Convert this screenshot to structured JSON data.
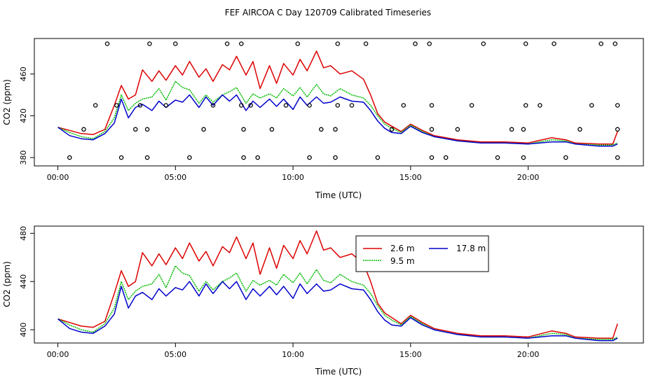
{
  "page": {
    "title": "FEF AIRCOA C  Day 120709  Calibrated Timeseries"
  },
  "colors": {
    "s26": "#dd0000",
    "s95": "#00bb00",
    "s178": "#0000cc",
    "axis": "#000000"
  },
  "chart_data": [
    {
      "type": "line",
      "title": "FEF AIRCOA C  Day 120709  Calibrated Timeseries",
      "xlabel": "Time (UTC)",
      "ylabel": "CO2 (ppm)",
      "xlim": [
        -1.0,
        24.9
      ],
      "ylim": [
        372,
        494
      ],
      "xticks": [
        0,
        5,
        10,
        15,
        20
      ],
      "xtick_labels": [
        "00:00",
        "05:00",
        "10:00",
        "15:00",
        "20:00"
      ],
      "yticks": [
        380,
        420,
        460
      ],
      "ytick_labels": [
        "380",
        "420",
        "460"
      ],
      "series": [
        {
          "name": "2.6 m",
          "color": "#dd0000",
          "x": [
            0.0,
            0.5,
            1.0,
            1.5,
            2.0,
            2.4,
            2.7,
            3.0,
            3.3,
            3.6,
            4.0,
            4.3,
            4.6,
            5.0,
            5.3,
            5.6,
            6.0,
            6.3,
            6.6,
            7.0,
            7.3,
            7.6,
            8.0,
            8.3,
            8.6,
            9.0,
            9.3,
            9.6,
            10.0,
            10.3,
            10.6,
            11.0,
            11.3,
            11.6,
            12.0,
            12.5,
            13.0,
            13.3,
            13.6,
            13.9,
            14.2,
            14.6,
            15.0,
            15.5,
            16.0,
            17.0,
            18.0,
            19.0,
            20.0,
            21.0,
            21.6,
            22.0,
            23.0,
            23.6,
            23.8
          ],
          "y": [
            409,
            406,
            403,
            402,
            407,
            430,
            449,
            436,
            440,
            464,
            453,
            463,
            454,
            468,
            459,
            472,
            457,
            465,
            453,
            469,
            464,
            477,
            459,
            472,
            446,
            468,
            451,
            470,
            459,
            474,
            463,
            482,
            466,
            468,
            460,
            463,
            455,
            440,
            422,
            414,
            410,
            405,
            412,
            406,
            401,
            397,
            395,
            395,
            394,
            399,
            397,
            394,
            393,
            393,
            405
          ]
        },
        {
          "name": "9.5 m",
          "color": "#00bb00",
          "x": [
            0.0,
            0.5,
            1.0,
            1.5,
            2.0,
            2.4,
            2.7,
            3.0,
            3.3,
            3.6,
            4.0,
            4.3,
            4.6,
            5.0,
            5.3,
            5.6,
            6.0,
            6.3,
            6.6,
            7.0,
            7.3,
            7.6,
            8.0,
            8.3,
            8.6,
            9.0,
            9.3,
            9.6,
            10.0,
            10.3,
            10.6,
            11.0,
            11.3,
            11.6,
            12.0,
            12.5,
            13.0,
            13.3,
            13.6,
            13.9,
            14.2,
            14.6,
            15.0,
            15.5,
            16.0,
            17.0,
            18.0,
            19.0,
            20.0,
            21.0,
            21.6,
            22.0,
            23.0,
            23.6,
            23.8
          ],
          "y": [
            409,
            404,
            400,
            398,
            405,
            418,
            440,
            425,
            432,
            436,
            438,
            446,
            435,
            453,
            447,
            445,
            432,
            440,
            433,
            440,
            443,
            447,
            432,
            441,
            437,
            441,
            437,
            446,
            439,
            447,
            438,
            450,
            441,
            439,
            446,
            440,
            437,
            430,
            420,
            412,
            408,
            404,
            411,
            405,
            400,
            396,
            394,
            394,
            393,
            397,
            396,
            393,
            392,
            392,
            394
          ]
        },
        {
          "name": "17.8 m",
          "color": "#0000cc",
          "x": [
            0.0,
            0.5,
            1.0,
            1.5,
            2.0,
            2.4,
            2.7,
            3.0,
            3.3,
            3.6,
            4.0,
            4.3,
            4.6,
            5.0,
            5.3,
            5.6,
            6.0,
            6.3,
            6.6,
            7.0,
            7.3,
            7.6,
            8.0,
            8.3,
            8.6,
            9.0,
            9.3,
            9.6,
            10.0,
            10.3,
            10.6,
            11.0,
            11.3,
            11.6,
            12.0,
            12.5,
            13.0,
            13.3,
            13.6,
            13.9,
            14.2,
            14.6,
            15.0,
            15.5,
            16.0,
            17.0,
            18.0,
            19.0,
            20.0,
            21.0,
            21.6,
            22.0,
            23.0,
            23.6,
            23.8
          ],
          "y": [
            409,
            401,
            398,
            397,
            403,
            413,
            436,
            418,
            428,
            431,
            425,
            434,
            428,
            435,
            433,
            440,
            428,
            438,
            430,
            440,
            434,
            440,
            425,
            434,
            428,
            436,
            429,
            436,
            426,
            438,
            430,
            438,
            432,
            433,
            438,
            434,
            433,
            425,
            415,
            408,
            404,
            403,
            410,
            404,
            400,
            396,
            394,
            394,
            393,
            395,
            395,
            393,
            391,
            391,
            393
          ]
        }
      ],
      "markers": {
        "shape": "open-circle",
        "x": [
          0.5,
          2.7,
          3.8,
          5.6,
          7.9,
          8.5,
          10.7,
          11.8,
          13.6,
          15.9,
          16.5,
          18.7,
          19.8,
          21.6,
          23.8,
          1.1,
          3.3,
          3.8,
          6.2,
          7.9,
          9.1,
          11.2,
          11.8,
          14.2,
          15.9,
          17.0,
          19.3,
          19.8,
          22.2,
          23.8,
          1.6,
          2.5,
          3.5,
          4.6,
          6.6,
          7.8,
          8.2,
          9.7,
          10.7,
          11.9,
          12.5,
          14.7,
          15.9,
          17.6,
          19.9,
          20.5,
          22.7,
          23.8,
          2.1,
          3.9,
          5.0,
          7.2,
          7.8,
          10.2,
          11.9,
          13.1,
          15.2,
          15.8,
          18.1,
          19.9,
          21.1,
          23.1,
          23.7
        ],
        "y": [
          380,
          380,
          380,
          380,
          380,
          380,
          380,
          380,
          380,
          380,
          380,
          380,
          380,
          380,
          380,
          407,
          407,
          407,
          407,
          407,
          407,
          407,
          407,
          407,
          407,
          407,
          407,
          407,
          407,
          407,
          430,
          430,
          430,
          430,
          430,
          430,
          430,
          430,
          430,
          430,
          430,
          430,
          430,
          430,
          430,
          430,
          430,
          430,
          489,
          489,
          489,
          489,
          489,
          489,
          489,
          489,
          489,
          489,
          489,
          489,
          489,
          489,
          489
        ]
      }
    },
    {
      "type": "line",
      "xlabel": "Time (UTC)",
      "ylabel": "CO2 (ppm)",
      "xlim": [
        -1.0,
        24.9
      ],
      "ylim": [
        389,
        486
      ],
      "xticks": [
        0,
        5,
        10,
        15,
        20
      ],
      "xtick_labels": [
        "00:00",
        "05:00",
        "10:00",
        "15:00",
        "20:00"
      ],
      "yticks": [
        400,
        440,
        480
      ],
      "ytick_labels": [
        "400",
        "440",
        "480"
      ],
      "legend": {
        "position": "top-right",
        "entries": [
          "2.6 m",
          "17.8 m",
          "9.5 m"
        ]
      },
      "series": [
        {
          "name": "2.6 m",
          "color": "#dd0000",
          "x": [
            0.0,
            0.5,
            1.0,
            1.5,
            2.0,
            2.4,
            2.7,
            3.0,
            3.3,
            3.6,
            4.0,
            4.3,
            4.6,
            5.0,
            5.3,
            5.6,
            6.0,
            6.3,
            6.6,
            7.0,
            7.3,
            7.6,
            8.0,
            8.3,
            8.6,
            9.0,
            9.3,
            9.6,
            10.0,
            10.3,
            10.6,
            11.0,
            11.3,
            11.6,
            12.0,
            12.5,
            13.0,
            13.3,
            13.6,
            13.9,
            14.2,
            14.6,
            15.0,
            15.5,
            16.0,
            17.0,
            18.0,
            19.0,
            20.0,
            21.0,
            21.6,
            22.0,
            23.0,
            23.6,
            23.8
          ],
          "y": [
            409,
            406,
            403,
            402,
            407,
            430,
            449,
            436,
            440,
            464,
            453,
            463,
            454,
            468,
            459,
            472,
            457,
            465,
            453,
            469,
            464,
            477,
            459,
            472,
            446,
            468,
            451,
            470,
            459,
            474,
            463,
            482,
            466,
            468,
            460,
            463,
            455,
            440,
            422,
            414,
            410,
            405,
            412,
            406,
            401,
            397,
            395,
            395,
            394,
            399,
            397,
            394,
            393,
            393,
            405
          ]
        },
        {
          "name": "9.5 m",
          "color": "#00bb00",
          "x": [
            0.0,
            0.5,
            1.0,
            1.5,
            2.0,
            2.4,
            2.7,
            3.0,
            3.3,
            3.6,
            4.0,
            4.3,
            4.6,
            5.0,
            5.3,
            5.6,
            6.0,
            6.3,
            6.6,
            7.0,
            7.3,
            7.6,
            8.0,
            8.3,
            8.6,
            9.0,
            9.3,
            9.6,
            10.0,
            10.3,
            10.6,
            11.0,
            11.3,
            11.6,
            12.0,
            12.5,
            13.0,
            13.3,
            13.6,
            13.9,
            14.2,
            14.6,
            15.0,
            15.5,
            16.0,
            17.0,
            18.0,
            19.0,
            20.0,
            21.0,
            21.6,
            22.0,
            23.0,
            23.6,
            23.8
          ],
          "y": [
            409,
            404,
            400,
            398,
            405,
            418,
            440,
            425,
            432,
            436,
            438,
            446,
            435,
            453,
            447,
            445,
            432,
            440,
            433,
            440,
            443,
            447,
            432,
            441,
            437,
            441,
            437,
            446,
            439,
            447,
            438,
            450,
            441,
            439,
            446,
            440,
            437,
            430,
            420,
            412,
            408,
            404,
            411,
            405,
            400,
            396,
            394,
            394,
            393,
            397,
            396,
            393,
            392,
            392,
            394
          ]
        },
        {
          "name": "17.8 m",
          "color": "#0000cc",
          "x": [
            0.0,
            0.5,
            1.0,
            1.5,
            2.0,
            2.4,
            2.7,
            3.0,
            3.3,
            3.6,
            4.0,
            4.3,
            4.6,
            5.0,
            5.3,
            5.6,
            6.0,
            6.3,
            6.6,
            7.0,
            7.3,
            7.6,
            8.0,
            8.3,
            8.6,
            9.0,
            9.3,
            9.6,
            10.0,
            10.3,
            10.6,
            11.0,
            11.3,
            11.6,
            12.0,
            12.5,
            13.0,
            13.3,
            13.6,
            13.9,
            14.2,
            14.6,
            15.0,
            15.5,
            16.0,
            17.0,
            18.0,
            19.0,
            20.0,
            21.0,
            21.6,
            22.0,
            23.0,
            23.6,
            23.8
          ],
          "y": [
            409,
            401,
            398,
            397,
            403,
            413,
            436,
            418,
            428,
            431,
            425,
            434,
            428,
            435,
            433,
            440,
            428,
            438,
            430,
            440,
            434,
            440,
            425,
            434,
            428,
            436,
            429,
            436,
            426,
            438,
            430,
            438,
            432,
            433,
            438,
            434,
            433,
            425,
            415,
            408,
            404,
            403,
            410,
            404,
            400,
            396,
            394,
            394,
            393,
            395,
            395,
            393,
            391,
            391,
            393
          ]
        }
      ]
    }
  ]
}
